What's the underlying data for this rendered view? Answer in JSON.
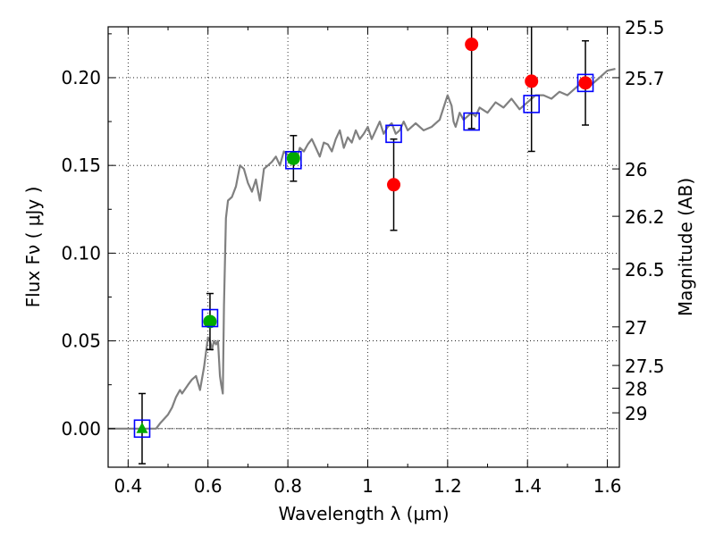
{
  "chart_data": {
    "type": "scatter",
    "xlabel": "Wavelength  λ (μm)",
    "ylabel_left": "Flux  Fν ( μJy )",
    "ylabel_right": "Magnitude (AB)",
    "xlim": [
      0.35,
      1.63
    ],
    "ylim": [
      -0.022,
      0.229
    ],
    "grid": true,
    "x_ticks": [
      0.4,
      0.6,
      0.8,
      1.0,
      1.2,
      1.4,
      1.6
    ],
    "x_tick_labels": [
      "0.4",
      "0.6",
      "0.8",
      "1",
      "1.2",
      "1.4",
      "1.6"
    ],
    "y_ticks": [
      0.0,
      0.05,
      0.1,
      0.15,
      0.2
    ],
    "y_tick_labels": [
      "0.00",
      "0.05",
      "0.10",
      "0.15",
      "0.20"
    ],
    "right_ticks": [
      {
        "label": "25.5",
        "flux": 0.229
      },
      {
        "label": "25.7",
        "flux": 0.2
      },
      {
        "label": "26",
        "flux": 0.148
      },
      {
        "label": "26.2",
        "flux": 0.121
      },
      {
        "label": "26.5",
        "flux": 0.091
      },
      {
        "label": "27",
        "flux": 0.058
      },
      {
        "label": "27.5",
        "flux": 0.036
      },
      {
        "label": "28",
        "flux": 0.023
      },
      {
        "label": "29",
        "flux": 0.009
      }
    ],
    "series": [
      {
        "kind": "line",
        "color": "#808080",
        "x": [
          0.35,
          0.47,
          0.48,
          0.5,
          0.51,
          0.52,
          0.53,
          0.535,
          0.55,
          0.56,
          0.57,
          0.58,
          0.59,
          0.6,
          0.605,
          0.61,
          0.615,
          0.62,
          0.625,
          0.63,
          0.633,
          0.637,
          0.64,
          0.645,
          0.65,
          0.66,
          0.67,
          0.68,
          0.69,
          0.7,
          0.71,
          0.72,
          0.73,
          0.74,
          0.75,
          0.76,
          0.77,
          0.78,
          0.79,
          0.8,
          0.81,
          0.82,
          0.83,
          0.84,
          0.85,
          0.86,
          0.87,
          0.88,
          0.89,
          0.9,
          0.91,
          0.92,
          0.93,
          0.94,
          0.95,
          0.96,
          0.97,
          0.98,
          0.99,
          1.0,
          1.01,
          1.02,
          1.03,
          1.04,
          1.05,
          1.06,
          1.07,
          1.08,
          1.09,
          1.1,
          1.12,
          1.14,
          1.16,
          1.18,
          1.2,
          1.21,
          1.215,
          1.22,
          1.23,
          1.24,
          1.25,
          1.26,
          1.27,
          1.28,
          1.3,
          1.32,
          1.34,
          1.36,
          1.38,
          1.4,
          1.42,
          1.44,
          1.46,
          1.48,
          1.5,
          1.52,
          1.54,
          1.56,
          1.58,
          1.6,
          1.62
        ],
        "y": [
          0.0,
          0.0,
          0.003,
          0.008,
          0.012,
          0.018,
          0.022,
          0.02,
          0.025,
          0.028,
          0.03,
          0.022,
          0.035,
          0.052,
          0.05,
          0.045,
          0.05,
          0.048,
          0.05,
          0.03,
          0.025,
          0.02,
          0.07,
          0.12,
          0.13,
          0.132,
          0.138,
          0.15,
          0.148,
          0.14,
          0.135,
          0.142,
          0.13,
          0.148,
          0.15,
          0.152,
          0.155,
          0.15,
          0.158,
          0.156,
          0.155,
          0.152,
          0.16,
          0.158,
          0.162,
          0.165,
          0.16,
          0.155,
          0.163,
          0.162,
          0.158,
          0.165,
          0.17,
          0.16,
          0.166,
          0.163,
          0.17,
          0.165,
          0.168,
          0.172,
          0.165,
          0.17,
          0.175,
          0.168,
          0.172,
          0.174,
          0.168,
          0.17,
          0.175,
          0.17,
          0.174,
          0.17,
          0.172,
          0.176,
          0.19,
          0.184,
          0.175,
          0.172,
          0.18,
          0.176,
          0.178,
          0.18,
          0.178,
          0.183,
          0.18,
          0.186,
          0.183,
          0.188,
          0.182,
          0.186,
          0.19,
          0.19,
          0.188,
          0.192,
          0.19,
          0.194,
          0.198,
          0.196,
          0.2,
          0.204,
          0.205
        ]
      },
      {
        "kind": "points",
        "name": "",
        "marker": "circle",
        "color": "#ff0000",
        "points": [
          {
            "x": 1.065,
            "y": 0.139,
            "err": 0.026
          },
          {
            "x": 1.26,
            "y": 0.219,
            "err": 0.048
          },
          {
            "x": 1.41,
            "y": 0.198,
            "err": 0.04
          },
          {
            "x": 1.545,
            "y": 0.197,
            "err": 0.024
          }
        ]
      },
      {
        "kind": "points",
        "name": "",
        "marker": "circle",
        "color": "#00aa00",
        "points": [
          {
            "x": 0.605,
            "y": 0.061,
            "err": 0.016
          },
          {
            "x": 0.814,
            "y": 0.154,
            "err": 0.013
          }
        ]
      },
      {
        "kind": "points",
        "name": "",
        "marker": "triangle",
        "color": "#00aa00",
        "points": [
          {
            "x": 0.435,
            "y": 0.0,
            "err": 0.02
          }
        ]
      },
      {
        "kind": "points",
        "name": "",
        "marker": "open-square",
        "color": "#0000ff",
        "points": [
          {
            "x": 0.435,
            "y": 0.0
          },
          {
            "x": 0.605,
            "y": 0.063
          },
          {
            "x": 0.814,
            "y": 0.153
          },
          {
            "x": 1.065,
            "y": 0.168
          },
          {
            "x": 1.26,
            "y": 0.175
          },
          {
            "x": 1.41,
            "y": 0.185
          },
          {
            "x": 1.545,
            "y": 0.197
          }
        ]
      }
    ]
  }
}
